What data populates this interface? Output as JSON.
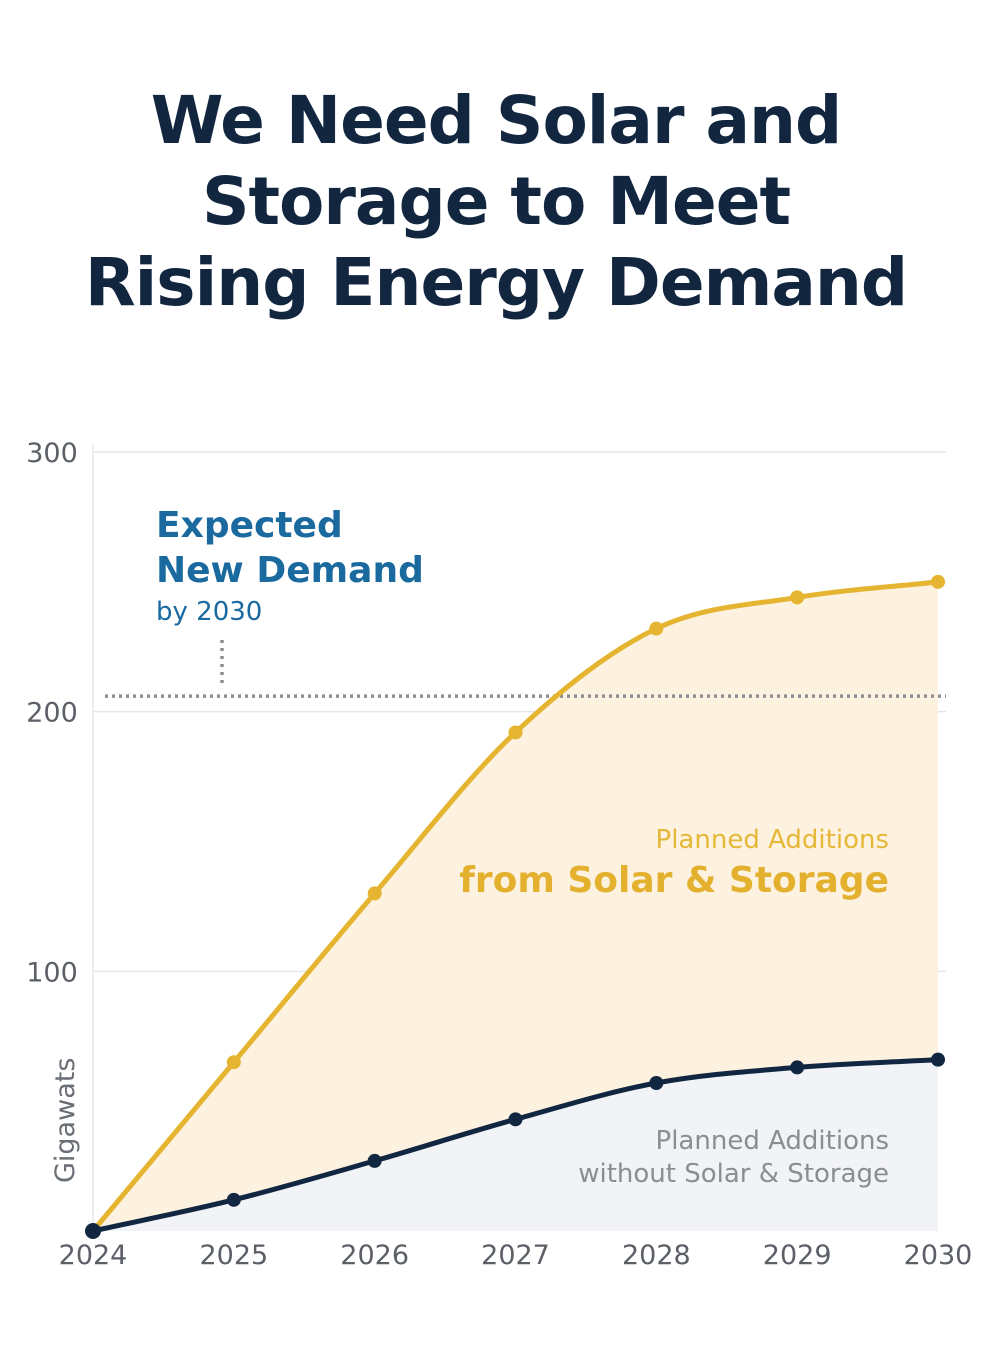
{
  "title_lines": [
    "We Need Solar and",
    "Storage to Meet",
    "Rising Energy Demand"
  ],
  "colors": {
    "solar": "#e5b531",
    "solar_fill": "#fdf1e0",
    "base": "#112640",
    "base_fill": "#f2f3f6",
    "demand": "#1a6aa0",
    "title": "#122640"
  },
  "chart_data": {
    "type": "area",
    "title": "We Need Solar and Storage to Meet Rising Energy Demand",
    "ylabel": "Gigawats",
    "xlabel": "",
    "x": [
      "2024",
      "2025",
      "2026",
      "2027",
      "2028",
      "2029",
      "2030"
    ],
    "ylim": [
      0,
      300
    ],
    "yticks": [
      100,
      200,
      300
    ],
    "grid": true,
    "series": [
      {
        "key": "solar",
        "values": [
          0,
          65,
          130,
          192,
          232,
          244,
          250
        ]
      },
      {
        "key": "base",
        "values": [
          0,
          12,
          27,
          43,
          57,
          63,
          66
        ]
      }
    ],
    "reference_line": {
      "value": 206,
      "style": "dotted"
    },
    "annotations": {
      "demand_line1": "Expected",
      "demand_line2": "New Demand",
      "demand_line3": "by 2030",
      "solar_line1": "Planned Additions",
      "solar_line2": "from Solar & Storage",
      "base_line1": "Planned Additions",
      "base_line2": "without Solar & Storage"
    }
  }
}
